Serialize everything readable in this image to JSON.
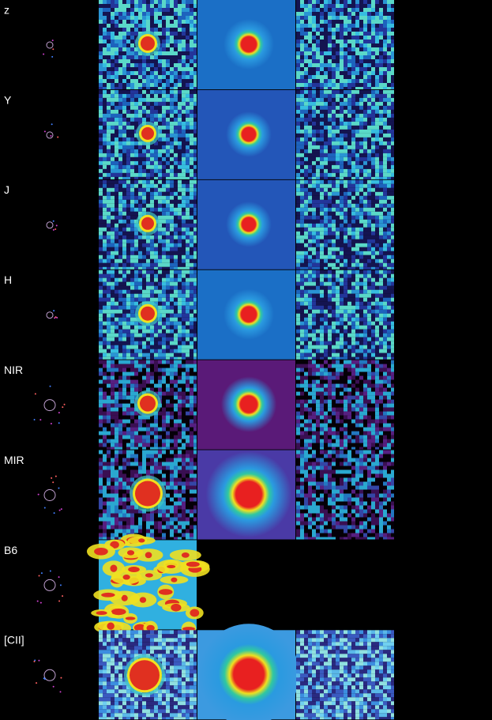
{
  "rows": [
    {
      "label": "z"
    },
    {
      "label": "Y"
    },
    {
      "label": "J"
    },
    {
      "label": "H"
    },
    {
      "label": "NIR"
    },
    {
      "label": "MIR"
    },
    {
      "label": "B6"
    },
    {
      "label": "[CII]"
    }
  ]
}
